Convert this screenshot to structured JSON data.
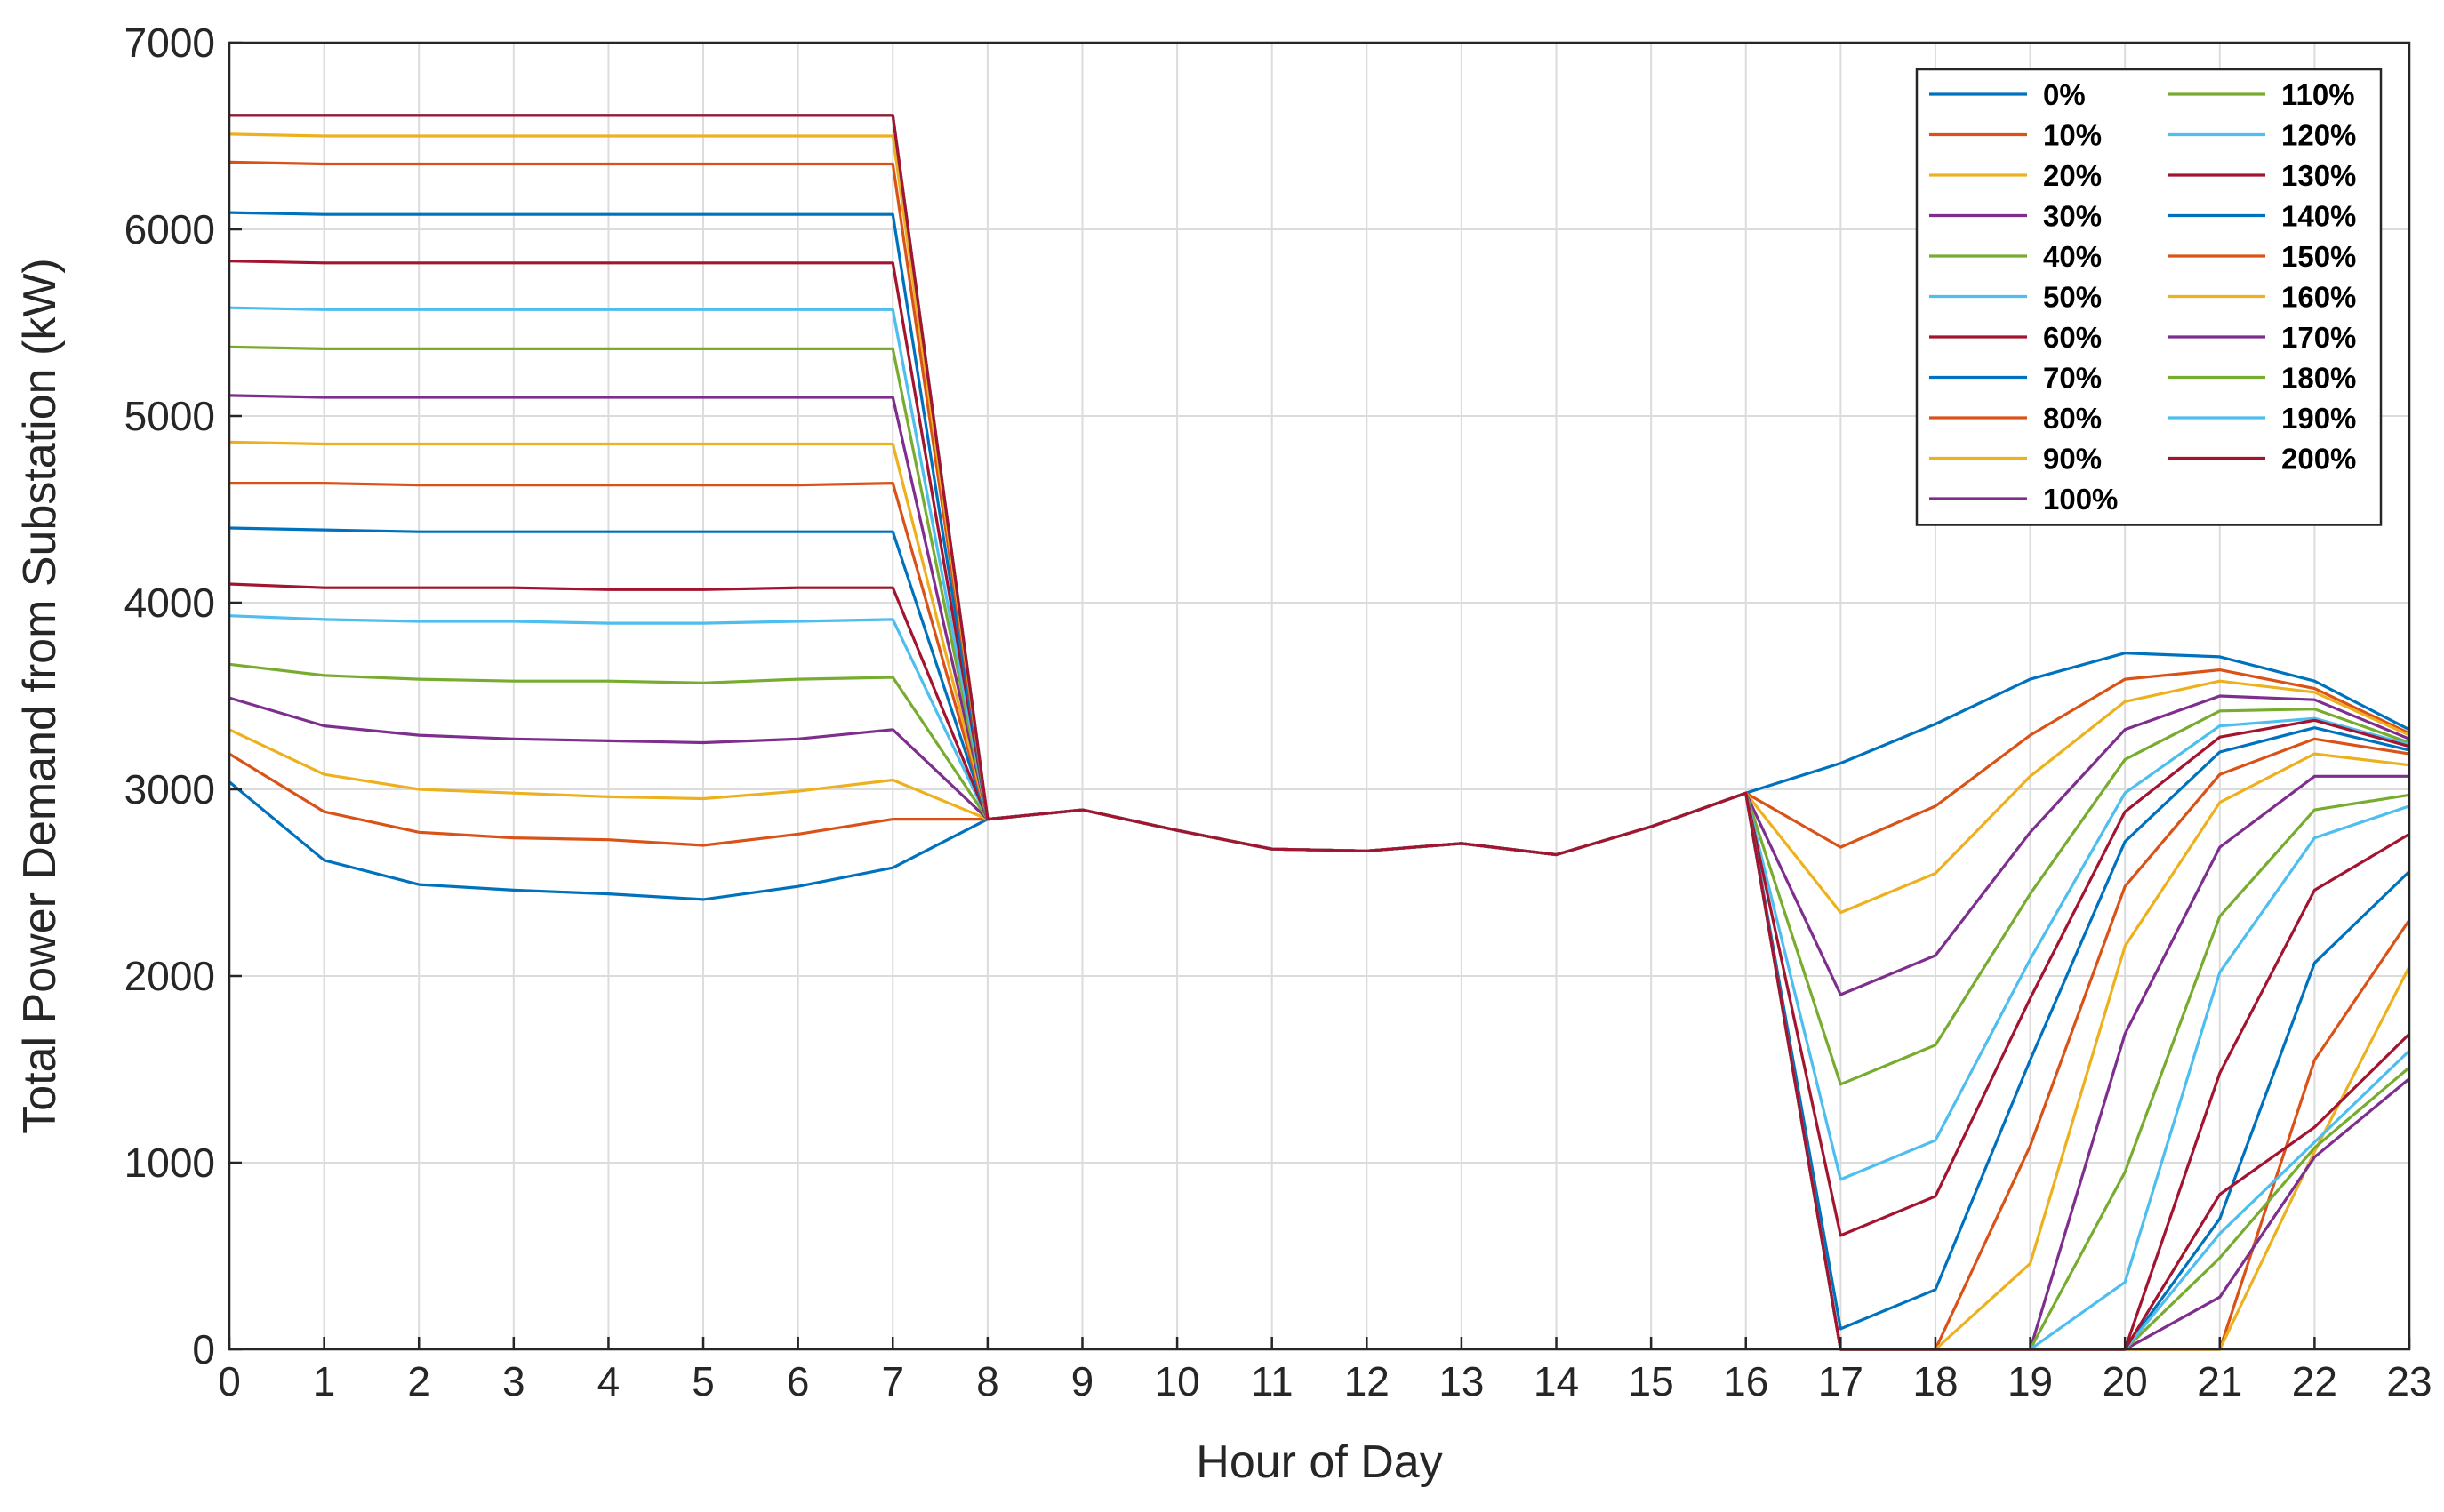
{
  "chart_data": {
    "type": "line",
    "title": "",
    "xlabel": "Hour of Day",
    "ylabel": "Total Power Demand from Substation (kW)",
    "xlim": [
      0,
      23
    ],
    "ylim": [
      0,
      7000
    ],
    "x": [
      0,
      1,
      2,
      3,
      4,
      5,
      6,
      7,
      8,
      9,
      10,
      11,
      12,
      13,
      14,
      15,
      16,
      17,
      18,
      19,
      20,
      21,
      22,
      23
    ],
    "xticks": [
      "0",
      "1",
      "2",
      "3",
      "4",
      "5",
      "6",
      "7",
      "8",
      "9",
      "10",
      "11",
      "12",
      "13",
      "14",
      "15",
      "16",
      "17",
      "18",
      "19",
      "20",
      "21",
      "22",
      "23"
    ],
    "yticks": [
      "0",
      "1000",
      "2000",
      "3000",
      "4000",
      "5000",
      "6000",
      "7000"
    ],
    "grid": true,
    "legend_position": "top-right",
    "legend_columns": 2,
    "series": [
      {
        "name": "0%",
        "color": "#0072BD",
        "values": [
          3040,
          2620,
          2490,
          2460,
          2440,
          2410,
          2480,
          2580,
          2840,
          2890,
          2780,
          2680,
          2670,
          2710,
          2650,
          2800,
          2980,
          3140,
          3350,
          3590,
          3730,
          3710,
          3580,
          3320
        ]
      },
      {
        "name": "10%",
        "color": "#D95319",
        "values": [
          3190,
          2880,
          2770,
          2740,
          2730,
          2700,
          2760,
          2840,
          2840,
          2890,
          2780,
          2680,
          2670,
          2710,
          2650,
          2800,
          2980,
          2690,
          2910,
          3290,
          3590,
          3640,
          3540,
          3300
        ]
      },
      {
        "name": "20%",
        "color": "#EDB120",
        "values": [
          3320,
          3080,
          3000,
          2980,
          2960,
          2950,
          2990,
          3050,
          2840,
          2890,
          2780,
          2680,
          2670,
          2710,
          2650,
          2800,
          2980,
          2340,
          2550,
          3070,
          3470,
          3580,
          3520,
          3290
        ]
      },
      {
        "name": "30%",
        "color": "#7E2F8E",
        "values": [
          3490,
          3340,
          3290,
          3270,
          3260,
          3250,
          3270,
          3320,
          2840,
          2890,
          2780,
          2680,
          2670,
          2710,
          2650,
          2800,
          2980,
          1900,
          2110,
          2770,
          3320,
          3500,
          3480,
          3270
        ]
      },
      {
        "name": "40%",
        "color": "#77AC30",
        "values": [
          3670,
          3610,
          3590,
          3580,
          3580,
          3570,
          3590,
          3600,
          2840,
          2890,
          2780,
          2680,
          2670,
          2710,
          2650,
          2800,
          2980,
          1420,
          1630,
          2440,
          3160,
          3420,
          3430,
          3250
        ]
      },
      {
        "name": "50%",
        "color": "#4DBEEE",
        "values": [
          3930,
          3910,
          3900,
          3900,
          3890,
          3890,
          3900,
          3910,
          2840,
          2890,
          2780,
          2680,
          2670,
          2710,
          2650,
          2800,
          2980,
          910,
          1120,
          2090,
          2980,
          3340,
          3380,
          3240
        ]
      },
      {
        "name": "60%",
        "color": "#A2142F",
        "values": [
          4100,
          4080,
          4080,
          4080,
          4070,
          4070,
          4080,
          4080,
          2840,
          2890,
          2780,
          2680,
          2670,
          2710,
          2650,
          2800,
          2980,
          610,
          820,
          1880,
          2880,
          3280,
          3370,
          3230
        ]
      },
      {
        "name": "70%",
        "color": "#0072BD",
        "values": [
          4400,
          4390,
          4380,
          4380,
          4380,
          4380,
          4380,
          4380,
          2840,
          2890,
          2780,
          2680,
          2670,
          2710,
          2650,
          2800,
          2980,
          110,
          320,
          1550,
          2720,
          3200,
          3330,
          3210
        ]
      },
      {
        "name": "80%",
        "color": "#D95319",
        "values": [
          4640,
          4640,
          4630,
          4630,
          4630,
          4630,
          4630,
          4640,
          2840,
          2890,
          2780,
          2680,
          2670,
          2710,
          2650,
          2800,
          2980,
          0,
          0,
          1090,
          2480,
          3080,
          3270,
          3190
        ]
      },
      {
        "name": "90%",
        "color": "#EDB120",
        "values": [
          4860,
          4850,
          4850,
          4850,
          4850,
          4850,
          4850,
          4850,
          2840,
          2890,
          2780,
          2680,
          2670,
          2710,
          2650,
          2800,
          2980,
          0,
          0,
          460,
          2160,
          2930,
          3190,
          3130
        ]
      },
      {
        "name": "100%",
        "color": "#7E2F8E",
        "values": [
          5110,
          5100,
          5100,
          5100,
          5100,
          5100,
          5100,
          5100,
          2840,
          2890,
          2780,
          2680,
          2670,
          2710,
          2650,
          2800,
          2980,
          0,
          0,
          0,
          1690,
          2690,
          3070,
          3070
        ]
      },
      {
        "name": "110%",
        "color": "#77AC30",
        "values": [
          5370,
          5360,
          5360,
          5360,
          5360,
          5360,
          5360,
          5360,
          2840,
          2890,
          2780,
          2680,
          2670,
          2710,
          2650,
          2800,
          2980,
          0,
          0,
          0,
          950,
          2320,
          2890,
          2970
        ]
      },
      {
        "name": "120%",
        "color": "#4DBEEE",
        "values": [
          5580,
          5570,
          5570,
          5570,
          5570,
          5570,
          5570,
          5570,
          2840,
          2890,
          2780,
          2680,
          2670,
          2710,
          2650,
          2800,
          2980,
          0,
          0,
          0,
          360,
          2020,
          2740,
          2910
        ]
      },
      {
        "name": "130%",
        "color": "#A2142F",
        "values": [
          5830,
          5820,
          5820,
          5820,
          5820,
          5820,
          5820,
          5820,
          2840,
          2890,
          2780,
          2680,
          2670,
          2710,
          2650,
          2800,
          2980,
          0,
          0,
          0,
          0,
          1480,
          2460,
          2760
        ]
      },
      {
        "name": "140%",
        "color": "#0072BD",
        "values": [
          6090,
          6080,
          6080,
          6080,
          6080,
          6080,
          6080,
          6080,
          2840,
          2890,
          2780,
          2680,
          2670,
          2710,
          2650,
          2800,
          2980,
          0,
          0,
          0,
          0,
          700,
          2070,
          2560
        ]
      },
      {
        "name": "150%",
        "color": "#D95319",
        "values": [
          6360,
          6350,
          6350,
          6350,
          6350,
          6350,
          6350,
          6350,
          2840,
          2890,
          2780,
          2680,
          2670,
          2710,
          2650,
          2800,
          2980,
          0,
          0,
          0,
          0,
          0,
          1550,
          2300
        ]
      },
      {
        "name": "160%",
        "color": "#EDB120",
        "values": [
          6510,
          6500,
          6500,
          6500,
          6500,
          6500,
          6500,
          6500,
          2840,
          2890,
          2780,
          2680,
          2670,
          2710,
          2650,
          2800,
          2980,
          0,
          0,
          0,
          0,
          0,
          1060,
          2050
        ]
      },
      {
        "name": "170%",
        "color": "#7E2F8E",
        "values": [
          6610,
          6610,
          6610,
          6610,
          6610,
          6610,
          6610,
          6610,
          2840,
          2890,
          2780,
          2680,
          2670,
          2710,
          2650,
          2800,
          2980,
          0,
          0,
          0,
          0,
          280,
          1030,
          1450
        ]
      },
      {
        "name": "180%",
        "color": "#77AC30",
        "values": [
          6610,
          6610,
          6610,
          6610,
          6610,
          6610,
          6610,
          6610,
          2840,
          2890,
          2780,
          2680,
          2670,
          2710,
          2650,
          2800,
          2980,
          0,
          0,
          0,
          0,
          490,
          1080,
          1510
        ]
      },
      {
        "name": "190%",
        "color": "#4DBEEE",
        "values": [
          6610,
          6610,
          6610,
          6610,
          6610,
          6610,
          6610,
          6610,
          2840,
          2890,
          2780,
          2680,
          2670,
          2710,
          2650,
          2800,
          2980,
          0,
          0,
          0,
          0,
          620,
          1110,
          1600
        ]
      },
      {
        "name": "200%",
        "color": "#A2142F",
        "values": [
          6610,
          6610,
          6610,
          6610,
          6610,
          6610,
          6610,
          6610,
          2840,
          2890,
          2780,
          2680,
          2670,
          2710,
          2650,
          2800,
          2980,
          0,
          0,
          0,
          0,
          830,
          1190,
          1690
        ]
      }
    ]
  }
}
